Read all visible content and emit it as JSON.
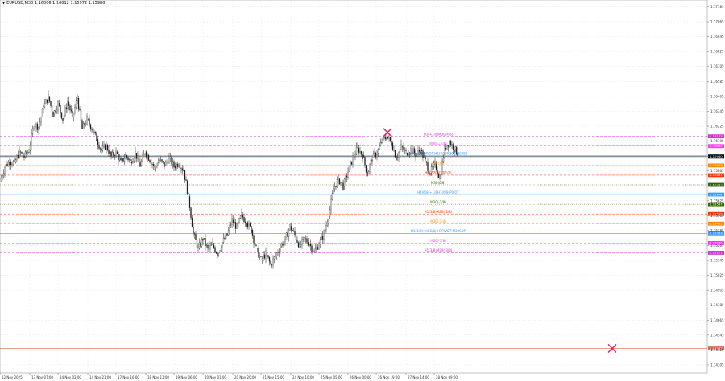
{
  "chart": {
    "symbol_header": "EURUSD,M30 1.16006 1.16012 1.15972 1.15980",
    "header_marker": "▼"
  },
  "chart_data": {
    "type": "candlestick",
    "title": "EURUSD,M30",
    "ohlc_last": {
      "open": 1.16006,
      "high": 1.16012,
      "low": 1.15972,
      "close": 1.1598
    },
    "x_ticks": [
      "12 Nov 2025",
      "13 Nov 07:00",
      "14 Nov 02:00",
      "14 Nov 21:00",
      "17 Nov 16:00",
      "18 Nov 11:00",
      "19 Nov 06:00",
      "20 Nov 01:00",
      "20 Nov 20:00",
      "21 Nov 15:00",
      "24 Nov 10:00",
      "25 Nov 05:00",
      "26 Nov 00:00",
      "26 Nov 19:00",
      "27 Nov 14:00",
      "28 Nov 09:00"
    ],
    "y_ticks": [
      "1.17185",
      "1.17065",
      "1.16945",
      "1.16825",
      "1.16705",
      "1.16585",
      "1.16465",
      "1.16345",
      "1.16225",
      "1.16105",
      "1.15985",
      "1.15865",
      "1.15745",
      "1.15625",
      "1.15505",
      "1.15385",
      "1.15265",
      "1.15145",
      "1.15025",
      "1.14905",
      "1.14785",
      "1.14665",
      "1.14545",
      "1.14425",
      "1.14305"
    ],
    "ylim": [
      1.1424,
      1.1724
    ],
    "price_path": [
      [
        0,
        1.1578
      ],
      [
        6,
        1.159
      ],
      [
        12,
        1.1594
      ],
      [
        18,
        1.1593
      ],
      [
        24,
        1.1602
      ],
      [
        30,
        1.1598
      ],
      [
        36,
        1.1603
      ],
      [
        42,
        1.1624
      ],
      [
        48,
        1.1622
      ],
      [
        54,
        1.1638
      ],
      [
        60,
        1.1646
      ],
      [
        66,
        1.1632
      ],
      [
        72,
        1.1641
      ],
      [
        78,
        1.1628
      ],
      [
        84,
        1.1642
      ],
      [
        90,
        1.163
      ],
      [
        96,
        1.1645
      ],
      [
        102,
        1.162
      ],
      [
        108,
        1.1628
      ],
      [
        114,
        1.1621
      ],
      [
        120,
        1.1612
      ],
      [
        126,
        1.1603
      ],
      [
        132,
        1.1607
      ],
      [
        138,
        1.1598
      ],
      [
        144,
        1.1602
      ],
      [
        150,
        1.1593
      ],
      [
        156,
        1.1599
      ],
      [
        162,
        1.1594
      ],
      [
        168,
        1.1601
      ],
      [
        174,
        1.1591
      ],
      [
        180,
        1.1602
      ],
      [
        186,
        1.1596
      ],
      [
        192,
        1.1589
      ],
      [
        198,
        1.1595
      ],
      [
        204,
        1.1591
      ],
      [
        210,
        1.1597
      ],
      [
        216,
        1.159
      ],
      [
        222,
        1.1593
      ],
      [
        228,
        1.1587
      ],
      [
        234,
        1.1566
      ],
      [
        240,
        1.1536
      ],
      [
        246,
        1.1524
      ],
      [
        252,
        1.1532
      ],
      [
        258,
        1.1523
      ],
      [
        264,
        1.1527
      ],
      [
        270,
        1.152
      ],
      [
        276,
        1.1529
      ],
      [
        282,
        1.1535
      ],
      [
        288,
        1.1547
      ],
      [
        294,
        1.1541
      ],
      [
        300,
        1.1551
      ],
      [
        306,
        1.1545
      ],
      [
        312,
        1.1539
      ],
      [
        318,
        1.1524
      ],
      [
        324,
        1.1515
      ],
      [
        330,
        1.152
      ],
      [
        336,
        1.1511
      ],
      [
        342,
        1.1518
      ],
      [
        348,
        1.1526
      ],
      [
        354,
        1.1531
      ],
      [
        360,
        1.1542
      ],
      [
        366,
        1.1535
      ],
      [
        372,
        1.1526
      ],
      [
        378,
        1.1532
      ],
      [
        384,
        1.1528
      ],
      [
        390,
        1.1521
      ],
      [
        396,
        1.1528
      ],
      [
        402,
        1.1536
      ],
      [
        408,
        1.155
      ],
      [
        414,
        1.1572
      ],
      [
        420,
        1.158
      ],
      [
        426,
        1.1574
      ],
      [
        432,
        1.1586
      ],
      [
        438,
        1.1597
      ],
      [
        444,
        1.1605
      ],
      [
        450,
        1.1599
      ],
      [
        456,
        1.1584
      ],
      [
        462,
        1.1597
      ],
      [
        468,
        1.1601
      ],
      [
        474,
        1.161
      ],
      [
        480,
        1.1614
      ],
      [
        486,
        1.1609
      ],
      [
        492,
        1.1597
      ],
      [
        498,
        1.1606
      ],
      [
        504,
        1.1601
      ],
      [
        510,
        1.1604
      ],
      [
        516,
        1.16
      ],
      [
        522,
        1.1603
      ],
      [
        528,
        1.1594
      ],
      [
        534,
        1.1585
      ],
      [
        540,
        1.1592
      ],
      [
        546,
        1.158
      ],
      [
        552,
        1.1605
      ],
      [
        558,
        1.161
      ],
      [
        564,
        1.1604
      ],
      [
        568,
        1.1601
      ]
    ],
    "levels": [
      {
        "price": "1.16143",
        "label": "H1(+1/8)M30(4/8)",
        "color": "#cc33cc",
        "style": "dashed",
        "y": 1.16143
      },
      {
        "price": "1.16065",
        "label": "M30(+1/8)",
        "color": "#ff33ff",
        "style": "dashed",
        "y": 1.16065
      },
      {
        "price": "1.15987",
        "label": "D1(+2/8)PIVOT H1(8/8)M30(3/8)RES",
        "color": "#3399ff",
        "style": "solid",
        "y": 1.15987
      },
      {
        "price": "1.15980",
        "label": "",
        "color": "#000000",
        "style": "solid",
        "y": 1.1598
      },
      {
        "price": "1.15909",
        "label": "M30(2/8)",
        "color": "#ff8800",
        "style": "dashed",
        "y": 1.15909
      },
      {
        "price": "1.15831",
        "label": "H1(7/8)M30(1/8)",
        "color": "#ff3300",
        "style": "dashed",
        "y": 1.15831
      },
      {
        "price": "1.15753",
        "label": "M30(0/8)",
        "color": "#336600",
        "style": "dotted",
        "y": 1.15753
      },
      {
        "price": "1.15675",
        "label": "H4(6/8)+1/8H1(6/8)PIVOT",
        "color": "#3399ff",
        "style": "solid",
        "y": 1.15675
      },
      {
        "price": "1.15597",
        "label": "M30(-1/8)",
        "color": "#336600",
        "style": "dotted",
        "y": 1.15597
      },
      {
        "price": "1.15519",
        "label": "H1(5/8)M30(-2/8)",
        "color": "#ff3300",
        "style": "dashed",
        "y": 1.15519
      },
      {
        "price": "1.15441",
        "label": "M30(-1/4)",
        "color": "#ff8800",
        "style": "dashed",
        "y": 1.15441
      },
      {
        "price": "1.15363",
        "label": "D1(1/8) H4(2/8) H1PIVOT M30SUP",
        "color": "#3399ff",
        "style": "solid",
        "y": 1.15363
      },
      {
        "price": "1.15285",
        "label": "M30(-1/8)",
        "color": "#ff33ff",
        "style": "dashed",
        "y": 1.15285
      },
      {
        "price": "1.15207",
        "label": "H1(3/8)M30(-3/8)",
        "color": "#cc33cc",
        "style": "dashed",
        "y": 1.15207
      },
      {
        "price": "1.14437",
        "label": "",
        "color": "#dd6655",
        "style": "solid",
        "y": 1.14437
      }
    ],
    "markers": [
      {
        "type": "cross",
        "color": "#e8175d",
        "x_index": 481,
        "price": 1.16175
      },
      {
        "type": "cross",
        "color": "#e8175d",
        "x_index": 760,
        "price": 1.14437
      }
    ],
    "grid": true
  }
}
